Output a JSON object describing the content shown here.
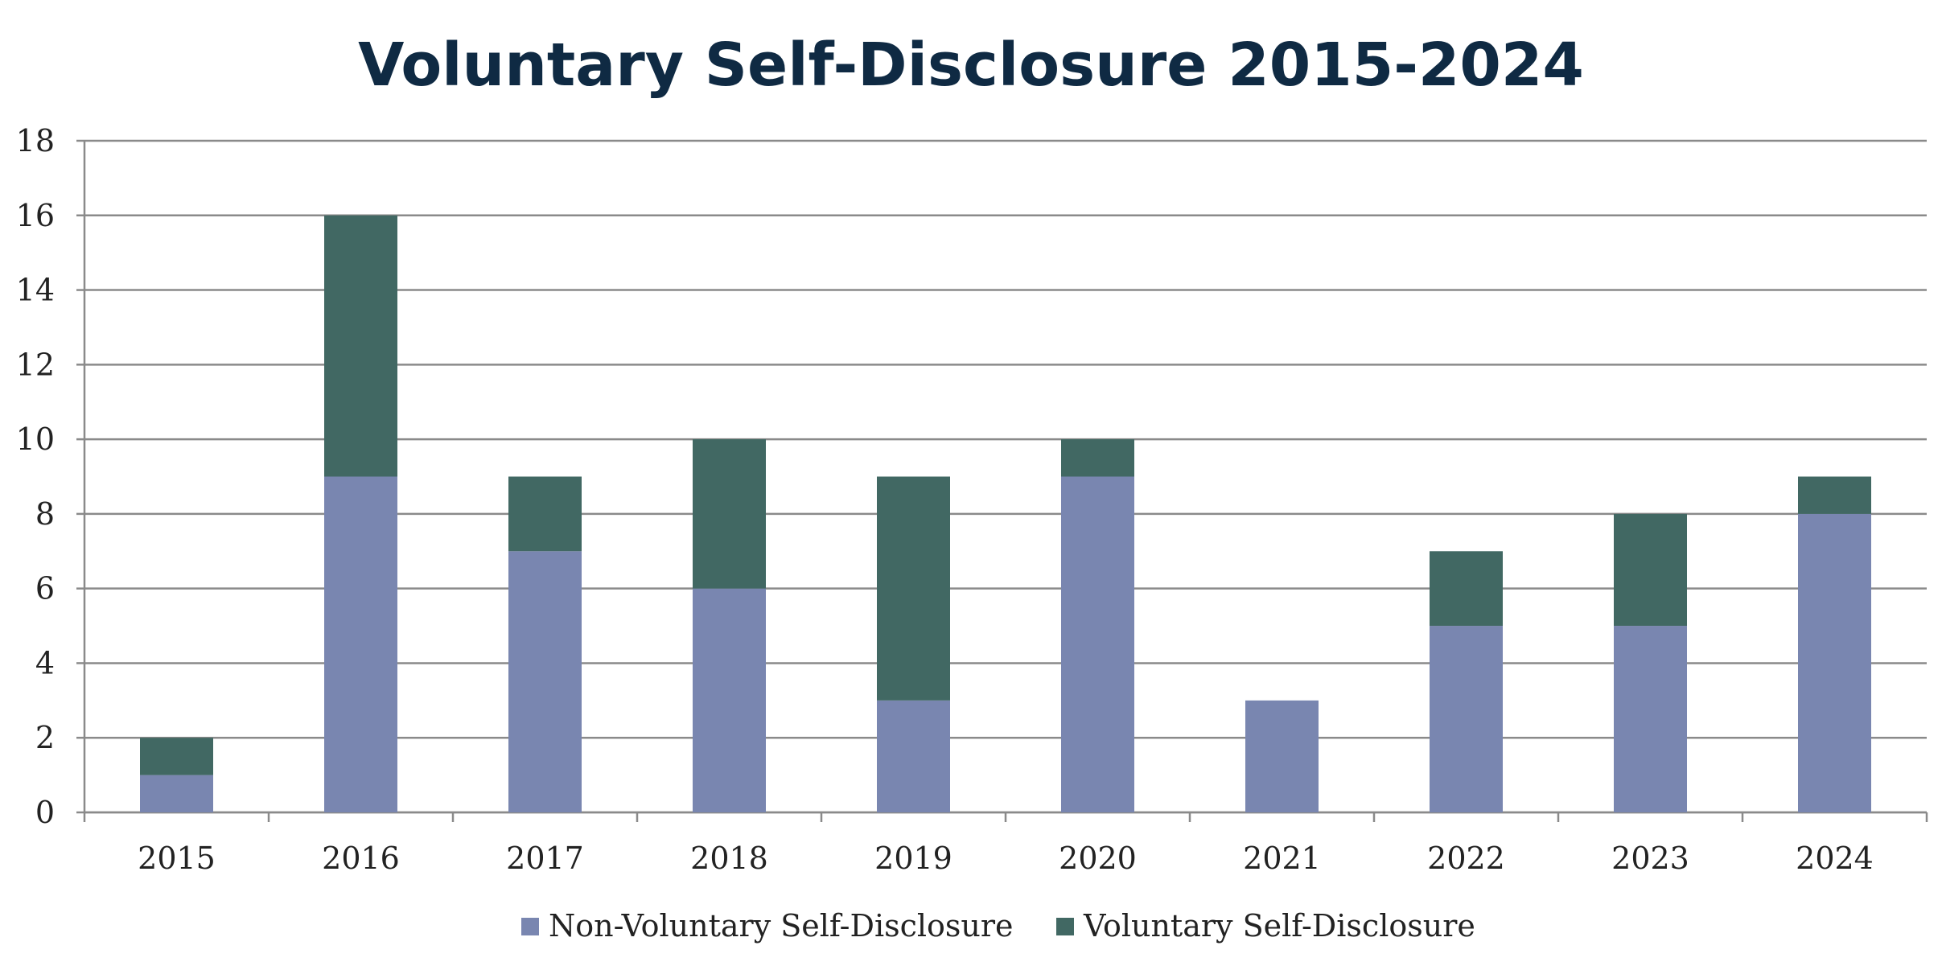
{
  "chart_data": {
    "type": "bar",
    "stacked": true,
    "title": "Voluntary Self-Disclosure 2015-2024",
    "xlabel": "",
    "ylabel": "",
    "ylim": [
      0,
      18
    ],
    "yticks": [
      "0",
      "2",
      "4",
      "6",
      "8",
      "10",
      "12",
      "14",
      "16",
      "18"
    ],
    "categories": [
      "2015",
      "2016",
      "2017",
      "2018",
      "2019",
      "2020",
      "2021",
      "2022",
      "2023",
      "2024"
    ],
    "series": [
      {
        "name": "Non-Voluntary Self-Disclosure",
        "color": "#7986b0",
        "values": [
          1,
          9,
          7,
          6,
          3,
          9,
          3,
          5,
          5,
          8
        ]
      },
      {
        "name": "Voluntary Self-Disclosure",
        "color": "#416863",
        "values": [
          1,
          7,
          2,
          4,
          6,
          1,
          0,
          2,
          3,
          1
        ]
      }
    ],
    "grid": true,
    "legend_position": "bottom"
  }
}
